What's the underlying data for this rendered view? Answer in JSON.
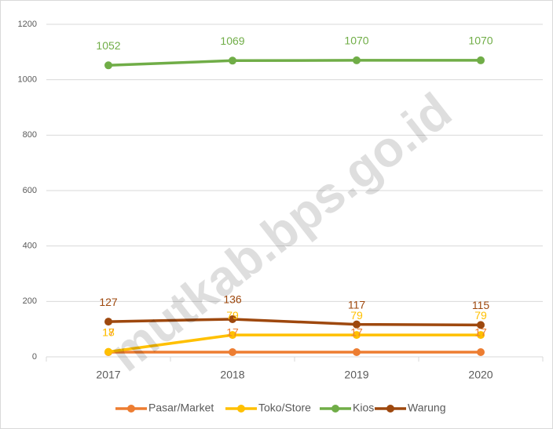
{
  "watermark": "mutkab.bps.go.id",
  "chart_data": {
    "type": "line",
    "categories": [
      "2017",
      "2018",
      "2019",
      "2020"
    ],
    "series": [
      {
        "name": "Pasar/Market",
        "color": "#ED7D31",
        "values": [
          17,
          17,
          17,
          17
        ]
      },
      {
        "name": "Toko/Store",
        "color": "#FFC000",
        "values": [
          18,
          79,
          79,
          79
        ]
      },
      {
        "name": "Kios",
        "color": "#70AD47",
        "values": [
          1052,
          1069,
          1070,
          1070
        ]
      },
      {
        "name": "Warung",
        "color": "#9E480E",
        "values": [
          127,
          136,
          117,
          115
        ]
      }
    ],
    "ylim": [
      0,
      1200
    ],
    "yticks": [
      0,
      200,
      400,
      600,
      800,
      1000,
      1200
    ],
    "grid": true,
    "legend": "bottom"
  }
}
